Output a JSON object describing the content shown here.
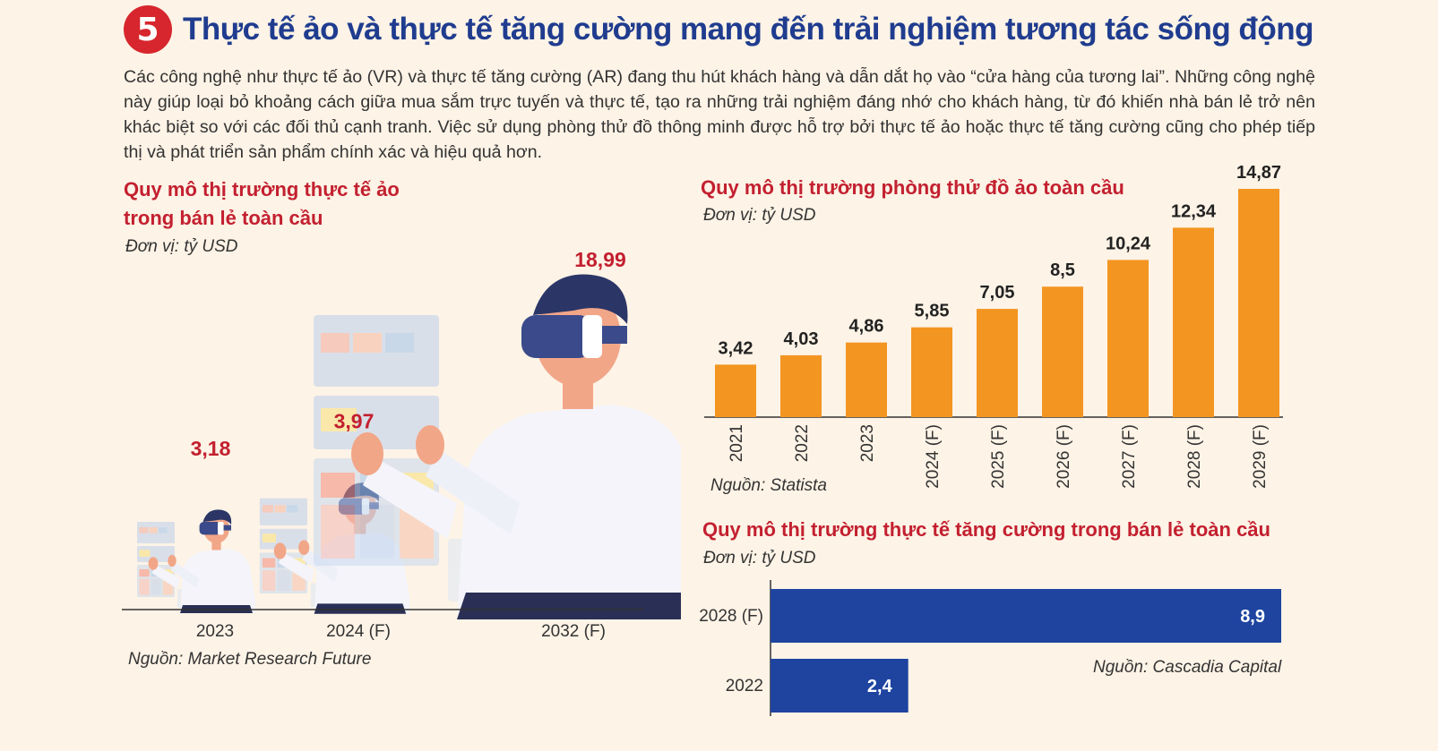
{
  "header": {
    "number": "5",
    "title": "Thực tế ảo và thực tế tăng cường mang đến trải nghiệm tương tác sống động",
    "intro": "Các công nghệ như thực tế ảo (VR) và thực tế tăng cường (AR) đang thu hút khách hàng và dẫn dắt họ vào “cửa hàng của tương lai”. Những công nghệ này giúp loại bỏ khoảng cách giữa mua sắm trực tuyến và thực tế, tạo ra những trải nghiệm đáng nhớ cho khách hàng, từ đó khiến nhà bán lẻ trở nên khác biệt so với các đối thủ cạnh tranh. Việc sử dụng phòng thử đồ thông minh được hỗ trợ bởi thực tế ảo hoặc thực tế tăng cường cũng cho phép tiếp thị và phát triển sản phẩm chính xác và hiệu quả hơn."
  },
  "colors": {
    "accent_red": "#c32030",
    "title_blue": "#1f3c8f",
    "bar_orange": "#f39521",
    "bar_blue": "#1e44a0"
  },
  "chart_data": [
    {
      "type": "bar",
      "title_lines": [
        "Quy mô thị trường thực tế ảo",
        "trong bán lẻ toàn cầu"
      ],
      "unit": "Đơn vị: tỷ USD",
      "categories": [
        "2023",
        "2024 (F)",
        "2032 (F)"
      ],
      "values": [
        3.18,
        3.97,
        18.99
      ],
      "value_labels": [
        "3,18",
        "3,97",
        "18,99"
      ],
      "source": "Nguồn: Market Research Future"
    },
    {
      "type": "bar",
      "title": "Quy mô thị trường phòng thử đồ ảo toàn cầu",
      "unit": "Đơn vị: tỷ USD",
      "categories": [
        "2021",
        "2022",
        "2023",
        "2024 (F)",
        "2025 (F)",
        "2026 (F)",
        "2027 (F)",
        "2028 (F)",
        "2029 (F)"
      ],
      "values": [
        3.42,
        4.03,
        4.86,
        5.85,
        7.05,
        8.5,
        10.24,
        12.34,
        14.87
      ],
      "value_labels": [
        "3,42",
        "4,03",
        "4,86",
        "5,85",
        "7,05",
        "8,5",
        "10,24",
        "12,34",
        "14,87"
      ],
      "source": "Nguồn: Statista"
    },
    {
      "type": "bar",
      "orientation": "horizontal",
      "title": "Quy mô thị trường thực tế tăng cường trong bán lẻ toàn cầu",
      "unit": "Đơn vị: tỷ USD",
      "categories": [
        "2028 (F)",
        "2022"
      ],
      "values": [
        8.9,
        2.4
      ],
      "value_labels": [
        "8,9",
        "2,4"
      ],
      "source": "Nguồn: Cascadia Capital"
    }
  ]
}
